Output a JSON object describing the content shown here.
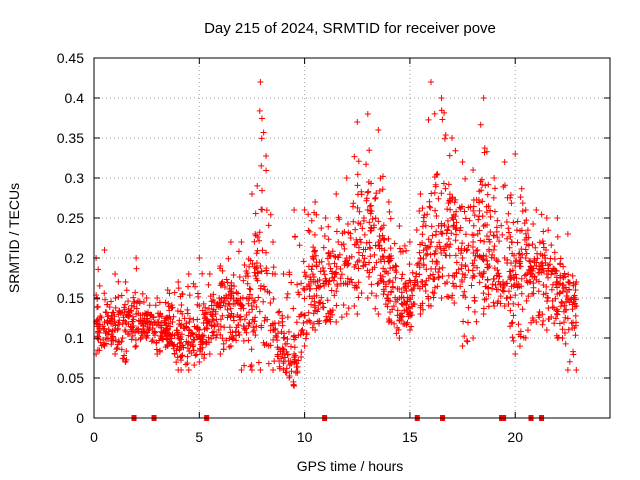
{
  "chart_data": {
    "type": "scatter",
    "title": "Day 215 of 2024, SRMTID for receiver pove",
    "xlabel": "GPS time / hours",
    "ylabel": "SRMTID / TECUs",
    "xlim": [
      0,
      24.5
    ],
    "ylim": [
      0,
      0.45
    ],
    "x_ticks": [
      0,
      5,
      10,
      15,
      20
    ],
    "x_tick_labels": [
      "0",
      "5",
      "10",
      "15",
      "20"
    ],
    "y_ticks": [
      0,
      0.05,
      0.1,
      0.15,
      0.2,
      0.25,
      0.3,
      0.35,
      0.4,
      0.45
    ],
    "y_tick_labels": [
      "0",
      "0.05",
      "0.1",
      "0.15",
      "0.2",
      "0.25",
      "0.3",
      "0.35",
      "0.4",
      "0.45"
    ],
    "grid": true,
    "marker": "plus",
    "series_color": "#ff0000",
    "series": [
      {
        "name": "SRMTID",
        "note": "dense point cloud; values below are hourly envelope samples read from the figure",
        "x": [
          0.1,
          0.5,
          1.0,
          1.5,
          2.0,
          2.5,
          3.0,
          3.5,
          4.0,
          4.5,
          5.0,
          5.5,
          6.0,
          6.5,
          7.0,
          7.5,
          7.9,
          8.5,
          9.0,
          9.5,
          10.0,
          10.5,
          11.0,
          11.5,
          12.0,
          12.5,
          13.0,
          13.5,
          14.0,
          14.5,
          15.0,
          15.5,
          16.0,
          16.5,
          17.0,
          17.5,
          18.0,
          18.5,
          19.0,
          19.5,
          20.0,
          20.5,
          21.0,
          21.5,
          22.0,
          22.5,
          22.9
        ],
        "low": [
          0.08,
          0.09,
          0.08,
          0.07,
          0.09,
          0.1,
          0.08,
          0.09,
          0.06,
          0.06,
          0.07,
          0.08,
          0.08,
          0.09,
          0.06,
          0.06,
          0.06,
          0.06,
          0.06,
          0.04,
          0.09,
          0.11,
          0.12,
          0.12,
          0.13,
          0.13,
          0.15,
          0.13,
          0.12,
          0.1,
          0.11,
          0.13,
          0.14,
          0.15,
          0.15,
          0.09,
          0.1,
          0.13,
          0.14,
          0.14,
          0.08,
          0.1,
          0.12,
          0.11,
          0.1,
          0.06,
          0.06
        ],
        "mid": [
          0.12,
          0.12,
          0.11,
          0.12,
          0.13,
          0.12,
          0.12,
          0.11,
          0.1,
          0.11,
          0.11,
          0.12,
          0.14,
          0.15,
          0.14,
          0.15,
          0.19,
          0.11,
          0.1,
          0.08,
          0.16,
          0.17,
          0.17,
          0.18,
          0.2,
          0.22,
          0.26,
          0.22,
          0.17,
          0.15,
          0.15,
          0.2,
          0.22,
          0.24,
          0.25,
          0.2,
          0.22,
          0.24,
          0.2,
          0.2,
          0.19,
          0.2,
          0.19,
          0.18,
          0.17,
          0.15,
          0.14
        ],
        "high": [
          0.2,
          0.21,
          0.18,
          0.17,
          0.2,
          0.15,
          0.15,
          0.16,
          0.17,
          0.18,
          0.2,
          0.18,
          0.19,
          0.22,
          0.22,
          0.28,
          0.42,
          0.22,
          0.18,
          0.26,
          0.26,
          0.27,
          0.25,
          0.28,
          0.3,
          0.37,
          0.38,
          0.36,
          0.27,
          0.24,
          0.22,
          0.28,
          0.42,
          0.4,
          0.35,
          0.32,
          0.31,
          0.4,
          0.3,
          0.32,
          0.33,
          0.26,
          0.26,
          0.25,
          0.25,
          0.23,
          0.17
        ]
      }
    ],
    "zero_markers_x": [
      1.9,
      2.85,
      5.35,
      10.95,
      15.35,
      16.55,
      19.35,
      19.45,
      20.75,
      21.25
    ]
  }
}
